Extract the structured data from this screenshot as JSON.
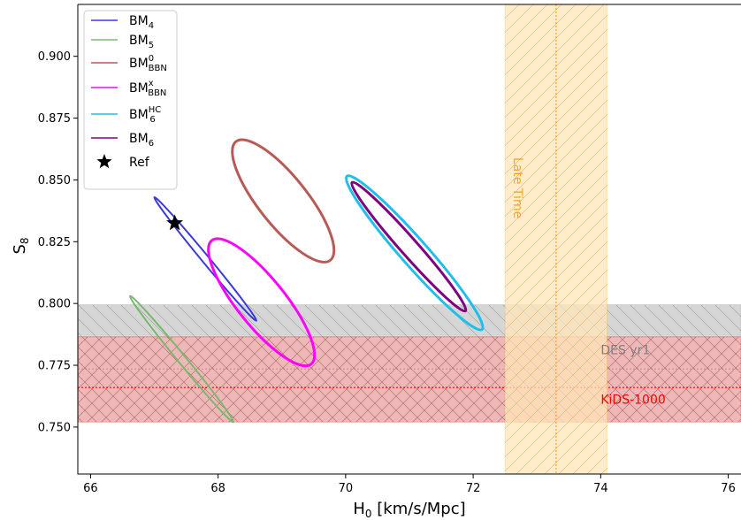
{
  "chart_data": {
    "type": "contour",
    "xlabel": "H0 [km/s/Mpc]",
    "ylabel": "S8",
    "xlim": [
      65.8,
      76.2
    ],
    "ylim": [
      0.731,
      0.921
    ],
    "xticks": [
      66,
      68,
      70,
      72,
      74,
      76
    ],
    "yticks": [
      0.75,
      0.775,
      0.8,
      0.825,
      0.85,
      0.875,
      0.9
    ],
    "xtick_labels": [
      "66",
      "68",
      "70",
      "72",
      "74",
      "76"
    ],
    "ytick_labels": [
      "0.750",
      "0.775",
      "0.800",
      "0.825",
      "0.850",
      "0.875",
      "0.900"
    ],
    "grid": false,
    "legend_position": "top-left",
    "series": [
      {
        "name": "BM4",
        "base": "BM",
        "sub": "4",
        "sup": "",
        "color": "#3a3adf",
        "ellipse": {
          "center": [
            67.8,
            0.818
          ],
          "p1": [
            67.0,
            0.843
          ],
          "p2": [
            68.6,
            0.793
          ],
          "minor_half_width": 0.045,
          "line_width": 2
        }
      },
      {
        "name": "BM5",
        "base": "BM",
        "sub": "5",
        "sup": "",
        "color": "#7ab870",
        "ellipse": {
          "center": [
            67.43,
            0.7775
          ],
          "p1": [
            66.62,
            0.803
          ],
          "p2": [
            68.24,
            0.752
          ],
          "minor_half_width": 0.05,
          "line_width": 2
        }
      },
      {
        "name": "BM0BBN",
        "base": "BM",
        "sub": "BBN",
        "sup": "0",
        "color": "#b85a55",
        "ellipse": {
          "center": [
            69.02,
            0.8415
          ],
          "p1": [
            68.28,
            0.8655
          ],
          "p2": [
            69.76,
            0.8175
          ],
          "minor_half_width": 0.32,
          "line_width": 3
        }
      },
      {
        "name": "BMxBBN",
        "base": "BM",
        "sub": "BBN",
        "sup": "x",
        "color": "#ff00ff",
        "ellipse": {
          "center": [
            68.68,
            0.8005
          ],
          "p1": [
            67.9,
            0.8255
          ],
          "p2": [
            69.46,
            0.7755
          ],
          "minor_half_width": 0.3,
          "line_width": 3
        }
      },
      {
        "name": "BMHC6",
        "base": "BM",
        "sub": "6",
        "sup": "HC",
        "color": "#1ebfea",
        "ellipse": {
          "center": [
            71.08,
            0.8205
          ],
          "p1": [
            70.02,
            0.8515
          ],
          "p2": [
            72.14,
            0.7895
          ],
          "minor_half_width": 0.13,
          "line_width": 3
        }
      },
      {
        "name": "BM6",
        "base": "BM",
        "sub": "6",
        "sup": "",
        "color": "#800080",
        "ellipse": {
          "center": [
            70.99,
            0.823
          ],
          "p1": [
            70.1,
            0.849
          ],
          "p2": [
            71.88,
            0.797
          ],
          "minor_half_width": 0.1,
          "line_width": 3
        }
      },
      {
        "name": "Ref",
        "base": "Ref",
        "sub": "",
        "sup": "",
        "color": "#000000",
        "marker": "star",
        "point": [
          67.32,
          0.8325
        ]
      }
    ],
    "bands": [
      {
        "label": "DES yr1",
        "orientation": "horizontal",
        "low": 0.7865,
        "high": 0.7995,
        "center": 0.7735,
        "fill": "#c8c8c8",
        "line_color": "#808080",
        "text_color": "#7f7f7f",
        "hatch": "\\"
      },
      {
        "label": "KiDS-1000",
        "orientation": "horizontal",
        "low": 0.752,
        "high": 0.7865,
        "center": 0.766,
        "fill": "#e8a0a0",
        "line_color": "#ff0000",
        "text_color": "#ff0000",
        "hatch": "x"
      },
      {
        "label": "Late Time",
        "orientation": "vertical",
        "low": 72.5,
        "high": 74.1,
        "center": 73.3,
        "fill": "#fde6b8",
        "line_color": "#f5a623",
        "text_color": "#f5a623",
        "hatch": "/"
      }
    ]
  }
}
